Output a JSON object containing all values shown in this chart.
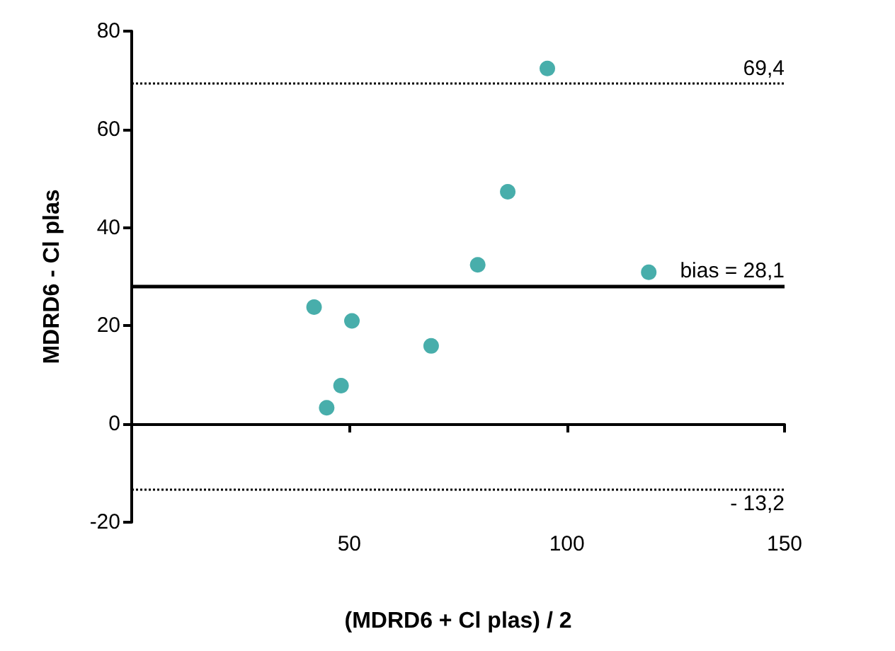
{
  "chart_data": {
    "type": "scatter",
    "xlabel": "(MDRD6 + Cl plas) / 2",
    "ylabel": "MDRD6 - Cl plas",
    "x": [
      95.5,
      86.4,
      79.5,
      118.8,
      41.9,
      50.6,
      68.8,
      48.1,
      44.8
    ],
    "series": [
      {
        "color": "#1a9a96",
        "values": [
          72.4,
          47.3,
          32.4,
          30.9,
          23.8,
          21.0,
          15.9,
          7.8,
          3.3
        ]
      }
    ],
    "xlim": [
      0,
      150
    ],
    "xticks": [
      50,
      100,
      150
    ],
    "ylim": [
      -20,
      80
    ],
    "yticks": [
      -20,
      0,
      20,
      40,
      60,
      80
    ],
    "ref_lines": [
      {
        "axis": "y",
        "value": 69.4,
        "label": "69,4",
        "line_style": "dotted"
      },
      {
        "axis": "y",
        "value": 28.1,
        "label": "bias = 28,1",
        "line_style": "solid"
      },
      {
        "axis": "y",
        "value": -13.2,
        "label": "- 13,2",
        "line_style": "dotted"
      }
    ],
    "marker": "circle"
  }
}
